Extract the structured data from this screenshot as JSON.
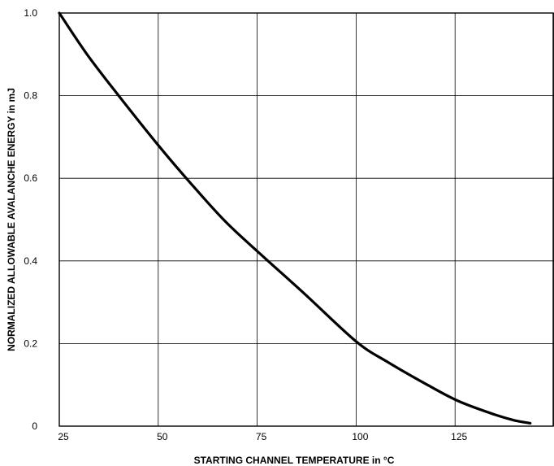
{
  "chart_data": {
    "type": "line",
    "title": "",
    "xlabel": "STARTING CHANNEL TEMPERATURE in °C",
    "ylabel": "NORMALIZED ALLOWABLE AVALANCHE ENERGY in mJ",
    "xlim": [
      25,
      150
    ],
    "ylim": [
      0,
      1.0
    ],
    "x_ticks": [
      25,
      50,
      75,
      100,
      125
    ],
    "y_ticks": [
      0,
      0.2,
      0.4,
      0.6,
      0.8,
      1.0
    ],
    "x_tick_labels": [
      "25",
      "50",
      "75",
      "100",
      "125"
    ],
    "y_tick_labels": [
      "0",
      "0.2",
      "0.4",
      "0.6",
      "0.8",
      "1.0"
    ],
    "grid": true,
    "series": [
      {
        "x": [
          25,
          32,
          40,
          50,
          58,
          67,
          76,
          87,
          100,
          108,
          118,
          126,
          135,
          140,
          144
        ],
        "y": [
          1.0,
          0.9,
          0.8,
          0.68,
          0.59,
          0.495,
          0.415,
          0.32,
          0.205,
          0.155,
          0.1,
          0.06,
          0.028,
          0.014,
          0.007
        ],
        "color": "#000000"
      }
    ]
  }
}
